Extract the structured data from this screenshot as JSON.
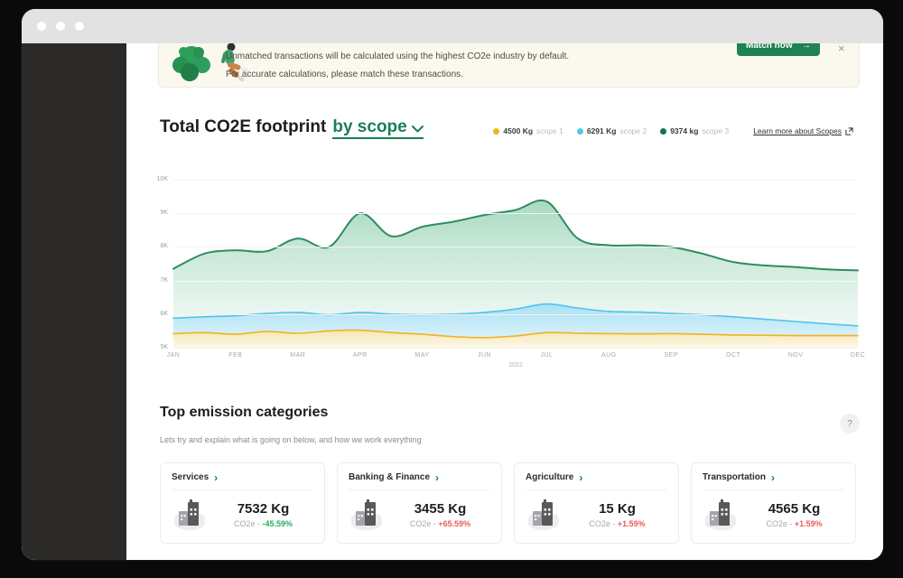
{
  "colors": {
    "accent_green": "#1E8254",
    "link_green": "#1A7F56",
    "negative_red": "#E85C5C",
    "positive_green": "#27AE60",
    "sidebar": "#2B2A28",
    "titlebar": "#E2E2E2",
    "banner_bg": "#FBF8EE"
  },
  "banner": {
    "line1": "Unmatched transactions will be calculated using the highest CO2e industry by default.",
    "line2": "For accurate calculations, please match these transactions.",
    "button": "Match now",
    "arrow": "→",
    "close": "×"
  },
  "footprint": {
    "title": "Total CO2E footprint",
    "scope_link": "by scope",
    "legend": [
      {
        "value": "4500 Kg",
        "label": "scope 1",
        "color": "#F0B41E"
      },
      {
        "value": "6291 Kg",
        "label": "scope 2",
        "color": "#56C5E8"
      },
      {
        "value": "9374 kg",
        "label": "scope 3",
        "color": "#17714E"
      }
    ],
    "learn_more": "Learn more about Scopes"
  },
  "chart_data": {
    "type": "area",
    "title": "Total CO2E footprint by scope",
    "x_labels": [
      "JAN",
      "FEB",
      "MAR",
      "APR",
      "MAY",
      "JUN",
      "JUL",
      "AUG",
      "SEP",
      "OCT",
      "NOV",
      "DEC"
    ],
    "x_sublabel": "2022",
    "y_ticks": [
      "10K",
      "9K",
      "8K",
      "7K",
      "6K",
      "5K"
    ],
    "ylim": [
      5000,
      10000
    ],
    "grid": "horizontal",
    "legend_position": "top-right",
    "points_per_month": 2,
    "series": [
      {
        "name": "scope 3",
        "stroke": "#2F8C5F",
        "stroke_width": 2,
        "fill_top": "rgba(139,205,172,0.75)",
        "fill_bottom": "rgba(242,250,246,0.5)",
        "values": [
          7350,
          7800,
          7900,
          7870,
          8250,
          8000,
          9000,
          8320,
          8600,
          8750,
          8950,
          9100,
          9350,
          8250,
          8050,
          8050,
          8000,
          7800,
          7550,
          7450,
          7400,
          7330,
          7300
        ]
      },
      {
        "name": "scope 2",
        "stroke": "#53C3E9",
        "stroke_width": 1.6,
        "fill_top": "rgba(167,224,246,0.95)",
        "fill_bottom": "rgba(231,246,252,0.95)",
        "values": [
          5880,
          5920,
          5950,
          6020,
          6050,
          5980,
          6050,
          6000,
          5980,
          6000,
          6050,
          6150,
          6300,
          6180,
          6080,
          6060,
          6020,
          5980,
          5920,
          5850,
          5780,
          5710,
          5650
        ]
      },
      {
        "name": "scope 1",
        "stroke": "#F0B41E",
        "stroke_width": 1.6,
        "fill_top": "rgba(249,230,178,0.95)",
        "fill_bottom": "rgba(253,247,230,0.95)",
        "values": [
          5420,
          5450,
          5400,
          5480,
          5430,
          5500,
          5520,
          5450,
          5400,
          5330,
          5300,
          5350,
          5450,
          5430,
          5420,
          5410,
          5420,
          5400,
          5380,
          5370,
          5360,
          5360,
          5360
        ]
      }
    ]
  },
  "categories_section": {
    "title": "Top emission categories",
    "subtitle": "Lets try and explain what is going on below,  and how we work everything",
    "help": "?",
    "cards": [
      {
        "title": "Services",
        "value": "7532 Kg",
        "unit_label": "CO2e -",
        "percent": "-45.59%",
        "percent_color": "#27AE60"
      },
      {
        "title": "Banking & Finance",
        "value": "3455 Kg",
        "unit_label": "CO2e -",
        "percent": "+65.59%",
        "percent_color": "#E85C5C"
      },
      {
        "title": "Agriculture",
        "value": "15 Kg",
        "unit_label": "CO2e -",
        "percent": "+1.59%",
        "percent_color": "#E85C5C"
      },
      {
        "title": "Transportation",
        "value": "4565 Kg",
        "unit_label": "CO2e -",
        "percent": "+1.59%",
        "percent_color": "#E85C5C"
      }
    ]
  }
}
